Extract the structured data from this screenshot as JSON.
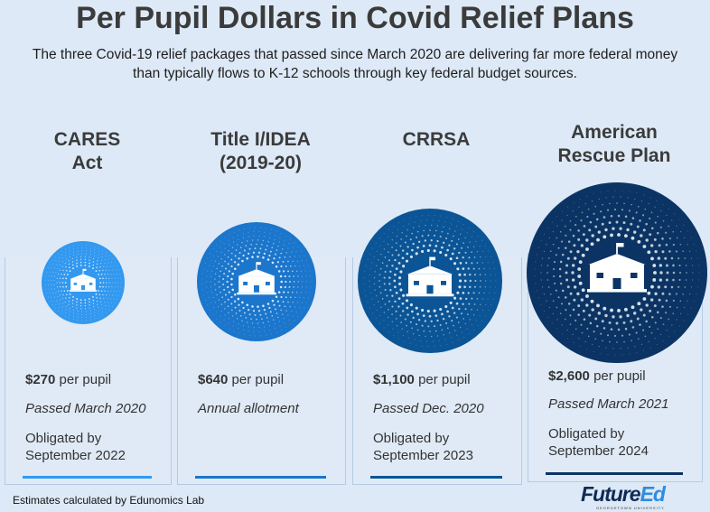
{
  "title": "Per Pupil Dollars in Covid Relief Plans",
  "subtitle": "The three Covid-19 relief packages that passed since March 2020 are delivering far more federal money than typically flows to K-12 schools through key federal budget sources.",
  "cards": [
    {
      "name": "CARES Act",
      "title_lines": [
        "CARES",
        "Act"
      ],
      "amount": "$270",
      "unit": "per pupil",
      "value": 270,
      "passed": "Passed March 2020",
      "obligated": [
        "Obligated by",
        "September 2022"
      ],
      "color": "#3399f0",
      "icon": "school-building-icon"
    },
    {
      "name": "Title I/IDEA (2019-20)",
      "title_lines": [
        "Title I/IDEA",
        "(2019-20)"
      ],
      "amount": "$640",
      "unit": "per pupil",
      "value": 640,
      "passed": "Annual allotment",
      "obligated": [
        "",
        ""
      ],
      "color": "#1b76cc",
      "icon": "school-building-icon"
    },
    {
      "name": "CRRSA",
      "title_lines": [
        "CRRSA",
        ""
      ],
      "amount": "$1,100",
      "unit": "per pupil",
      "value": 1100,
      "passed": "Passed Dec. 2020",
      "obligated": [
        "Obligated by",
        "September 2023"
      ],
      "color": "#0b5596",
      "icon": "school-building-icon"
    },
    {
      "name": "American Rescue Plan",
      "title_lines": [
        "American",
        "Rescue Plan"
      ],
      "amount": "$2,600",
      "unit": "per pupil",
      "value": 2600,
      "passed": "Passed March 2021",
      "obligated": [
        "Obligated by",
        "September 2024"
      ],
      "color": "#0b3464",
      "icon": "school-building-icon"
    }
  ],
  "footnote": "Estimates calculated by Edunomics Lab",
  "logo": {
    "part1": "Future",
    "part2": "Ed",
    "sub": "GEORGETOWN UNIVERSITY"
  }
}
